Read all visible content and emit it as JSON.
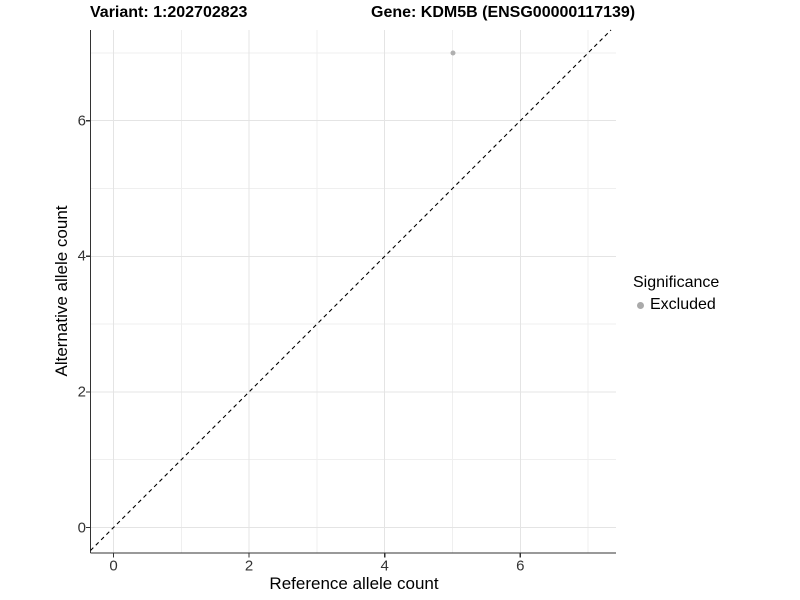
{
  "header": {
    "variant_title": "Variant: 1:202702823",
    "gene_title": "Gene: KDM5B (ENSG00000117139)"
  },
  "axes": {
    "x_label": "Reference allele count",
    "y_label": "Alternative allele count",
    "x_ticks": [
      "0",
      "2",
      "4",
      "6"
    ],
    "y_ticks": [
      "0",
      "2",
      "4",
      "6"
    ]
  },
  "legend": {
    "title": "Significance",
    "items": [
      {
        "label": "Excluded",
        "color": "#aaaaaa"
      }
    ]
  },
  "colors": {
    "background": "#ffffff",
    "grid_major": "#e4e4e4",
    "grid_minor": "#efefef",
    "axis_line": "#333333",
    "point": "#b0b0b0",
    "reference_line": "#000000"
  },
  "chart_data": {
    "type": "scatter",
    "title": "Variant: 1:202702823    Gene: KDM5B (ENSG00000117139)",
    "xlabel": "Reference allele count",
    "ylabel": "Alternative allele count",
    "xlim": [
      -0.35,
      7.4
    ],
    "ylim": [
      -0.4,
      7.35
    ],
    "x_ticks": [
      0,
      2,
      4,
      6
    ],
    "y_ticks": [
      0,
      2,
      4,
      6
    ],
    "grid": "major and minor light gray gridlines on white panel",
    "legend_position": "right",
    "legend_title": "Significance",
    "series": [
      {
        "name": "Excluded",
        "color": "#b0b0b0",
        "points": [
          {
            "x": 5,
            "y": 7
          }
        ]
      }
    ],
    "annotations": [
      {
        "type": "abline",
        "slope": 1,
        "intercept": 0,
        "linetype": "dashed",
        "color": "#000000",
        "description": "identity line y = x"
      }
    ]
  }
}
